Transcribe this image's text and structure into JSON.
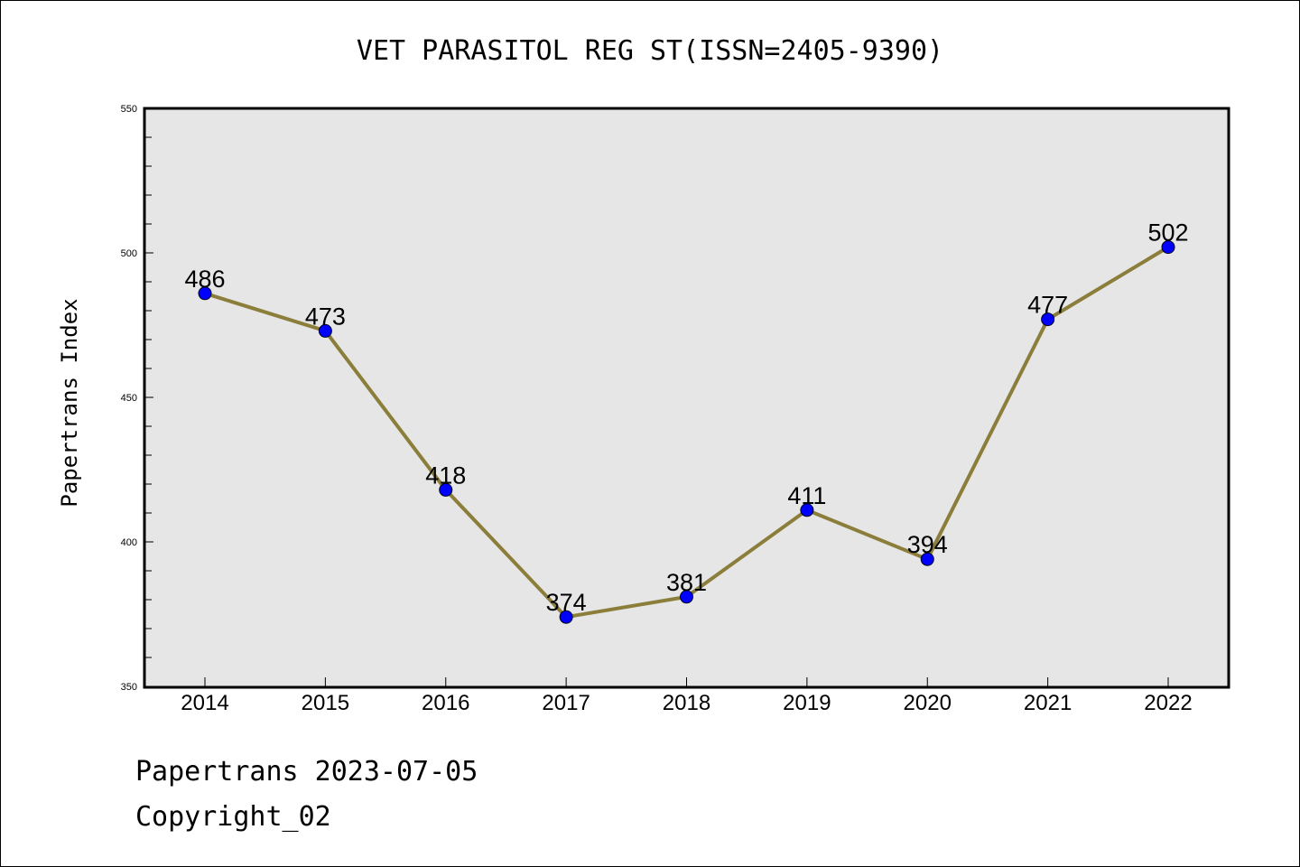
{
  "chart_data": {
    "type": "line",
    "title": "VET PARASITOL REG ST(ISSN=2405-9390)",
    "ylabel": "Papertrans Index",
    "xlabel": "",
    "categories": [
      "2014",
      "2015",
      "2016",
      "2017",
      "2018",
      "2019",
      "2020",
      "2021",
      "2022"
    ],
    "series": [
      {
        "values": [
          486,
          473,
          418,
          374,
          381,
          411,
          394,
          477,
          502
        ]
      }
    ],
    "ylim": [
      350,
      550
    ],
    "yticks": [
      "350",
      "400",
      "450",
      "500",
      "550"
    ],
    "grid": false,
    "colors": {
      "line": "#8b7d3a",
      "marker": "#0000ff",
      "plot_bg": "#e6e6e6"
    }
  },
  "footer": {
    "line1": "Papertrans 2023-07-05",
    "line2": "Copyright_02"
  }
}
